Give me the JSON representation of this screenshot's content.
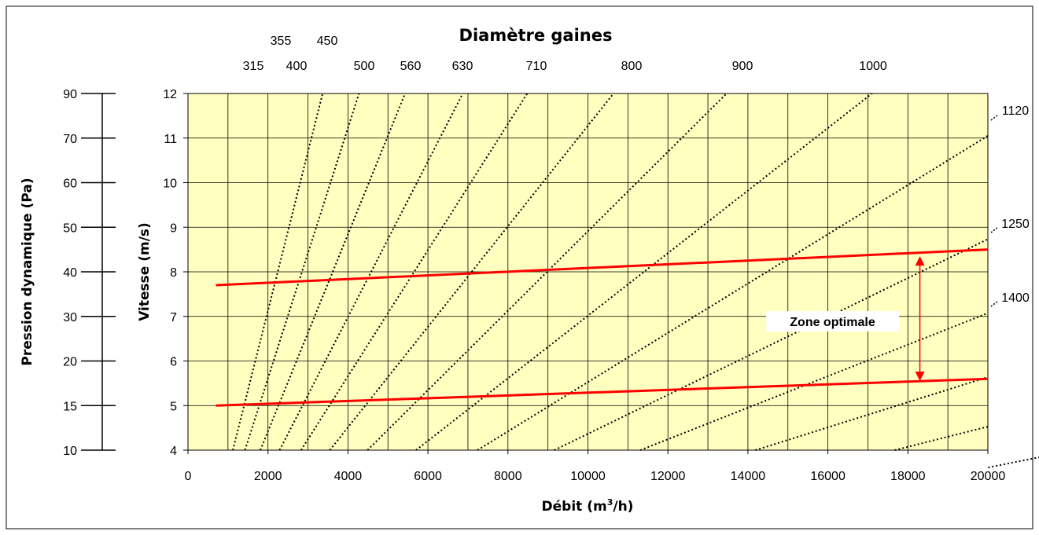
{
  "chart_data": {
    "type": "line",
    "title": "Diamètre gaines",
    "xlabel_pre": "Débit (m",
    "xlabel_sup": "3",
    "xlabel_post": "/h)",
    "ylabel": "Vitesse (m/s)",
    "y2label": "Pression dynamique (Pa)",
    "annotation": "Zone optimale",
    "xlim": [
      0,
      20000
    ],
    "ylim": [
      4,
      12
    ],
    "x_ticks": [
      "0",
      "2000",
      "4000",
      "6000",
      "8000",
      "10000",
      "12000",
      "14000",
      "16000",
      "18000",
      "20000"
    ],
    "y_ticks": [
      "4",
      "5",
      "6",
      "7",
      "8",
      "9",
      "10",
      "11",
      "12"
    ],
    "pressure_ticks": [
      {
        "label": "10",
        "v": 4.0
      },
      {
        "label": "15",
        "v": 5.0
      },
      {
        "label": "20",
        "v": 6.0
      },
      {
        "label": "30",
        "v": 7.0
      },
      {
        "label": "40",
        "v": 8.0
      },
      {
        "label": "50",
        "v": 9.0
      },
      {
        "label": "60",
        "v": 10.0
      },
      {
        "label": "70",
        "v": 11.0
      },
      {
        "label": "90",
        "v": 12.0
      }
    ],
    "diameter_labels": [
      "315",
      "355",
      "400",
      "450",
      "500",
      "560",
      "630",
      "710",
      "800",
      "900",
      "1000",
      "1120",
      "1250",
      "1400"
    ],
    "diameter_series": [
      {
        "d": 315
      },
      {
        "d": 355
      },
      {
        "d": 400
      },
      {
        "d": 450
      },
      {
        "d": 500
      },
      {
        "d": 560
      },
      {
        "d": 630
      },
      {
        "d": 710
      },
      {
        "d": 800
      },
      {
        "d": 900
      },
      {
        "d": 1000
      },
      {
        "d": 1120
      },
      {
        "d": 1250
      },
      {
        "d": 1400
      }
    ],
    "limits": [
      {
        "x": [
          700,
          20000
        ],
        "y": [
          7.7,
          8.5
        ]
      },
      {
        "x": [
          700,
          20000
        ],
        "y": [
          5.0,
          5.6
        ]
      }
    ],
    "arrow": {
      "x": 18300,
      "y": [
        5.55,
        8.35
      ]
    },
    "colors": {
      "plot_bg": "#ffffc0",
      "limit": "#ff0000",
      "annotation": "#ff0000",
      "grid": "#000000"
    }
  }
}
